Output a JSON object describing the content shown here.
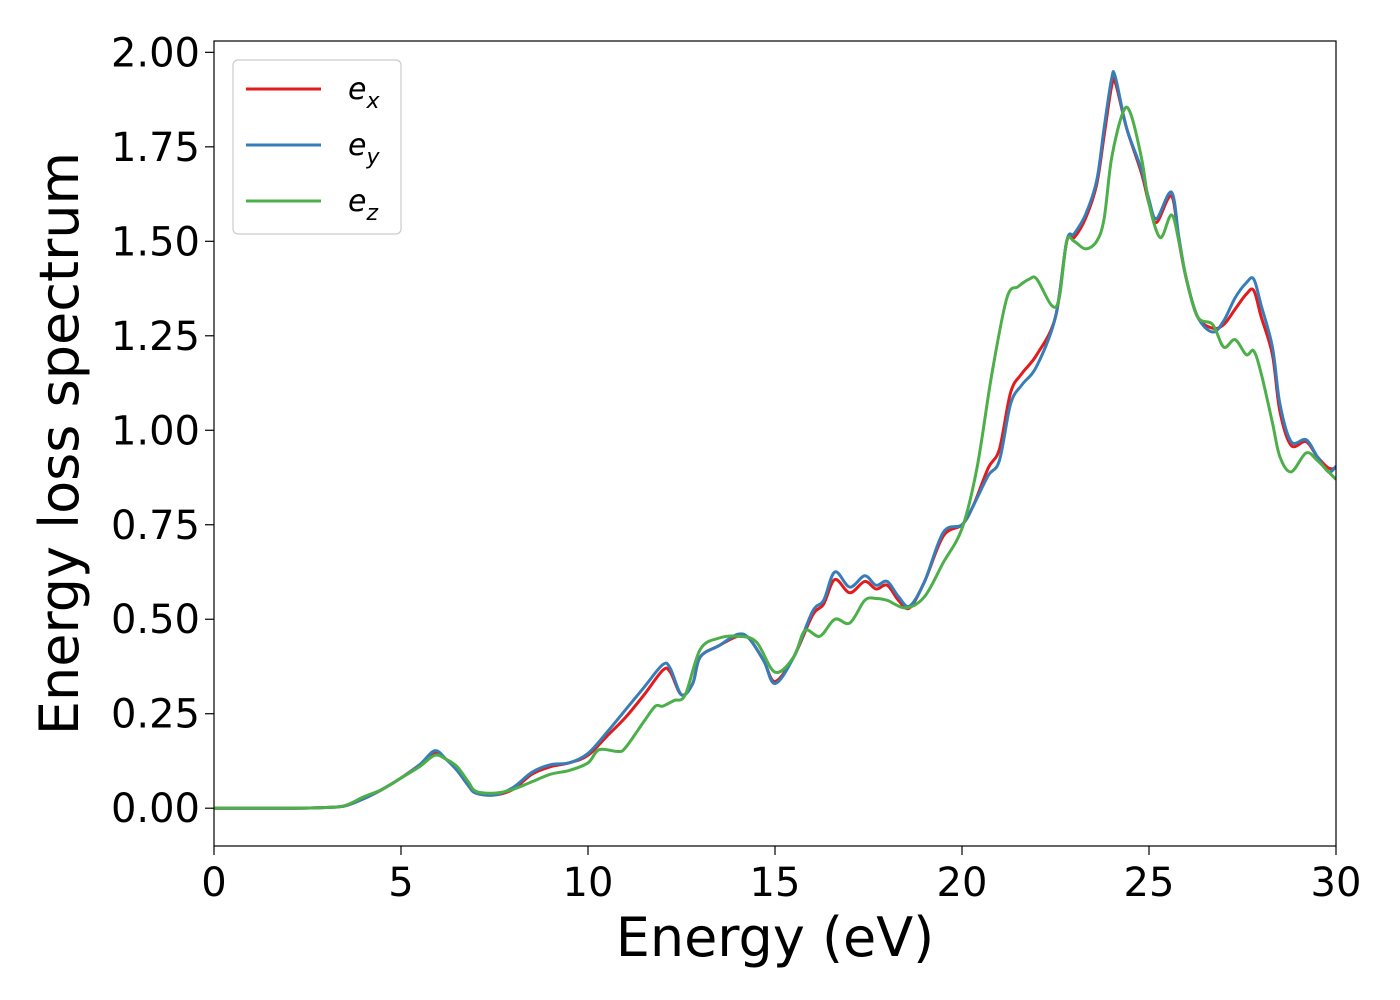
{
  "chart_data": {
    "type": "line",
    "title": "",
    "xlabel": "Energy (eV)",
    "ylabel": "Energy loss spectrum",
    "xlim": [
      0,
      30
    ],
    "ylim": [
      -0.1,
      2.03
    ],
    "xticks": [
      0,
      5,
      10,
      15,
      20,
      25,
      30
    ],
    "xtick_labels": [
      "0",
      "5",
      "10",
      "15",
      "20",
      "25",
      "30"
    ],
    "yticks": [
      0,
      0.25,
      0.5,
      0.75,
      1.0,
      1.25,
      1.5,
      1.75,
      2.0
    ],
    "ytick_labels": [
      "0.00",
      "0.25",
      "0.50",
      "0.75",
      "1.00",
      "1.25",
      "1.50",
      "1.75",
      "2.00"
    ],
    "grid": false,
    "legend_position": "top-left",
    "series": [
      {
        "name": "e",
        "subscript": "x",
        "color": "#e41a1c",
        "points": [
          [
            0,
            0
          ],
          [
            2,
            0
          ],
          [
            3,
            0.002
          ],
          [
            3.5,
            0.006
          ],
          [
            4,
            0.025
          ],
          [
            4.5,
            0.05
          ],
          [
            5,
            0.08
          ],
          [
            5.5,
            0.115
          ],
          [
            5.9,
            0.147
          ],
          [
            6.2,
            0.13
          ],
          [
            6.5,
            0.1
          ],
          [
            6.8,
            0.06
          ],
          [
            7,
            0.04
          ],
          [
            7.5,
            0.035
          ],
          [
            8,
            0.05
          ],
          [
            8.5,
            0.09
          ],
          [
            9,
            0.11
          ],
          [
            9.5,
            0.12
          ],
          [
            10,
            0.14
          ],
          [
            10.5,
            0.19
          ],
          [
            11,
            0.24
          ],
          [
            11.5,
            0.3
          ],
          [
            12,
            0.365
          ],
          [
            12.2,
            0.36
          ],
          [
            12.5,
            0.3
          ],
          [
            12.8,
            0.33
          ],
          [
            13,
            0.4
          ],
          [
            13.5,
            0.43
          ],
          [
            14,
            0.455
          ],
          [
            14.3,
            0.45
          ],
          [
            14.7,
            0.39
          ],
          [
            15,
            0.335
          ],
          [
            15.5,
            0.4
          ],
          [
            16,
            0.51
          ],
          [
            16.3,
            0.54
          ],
          [
            16.6,
            0.605
          ],
          [
            17,
            0.57
          ],
          [
            17.4,
            0.6
          ],
          [
            17.7,
            0.58
          ],
          [
            18,
            0.59
          ],
          [
            18.3,
            0.55
          ],
          [
            18.6,
            0.53
          ],
          [
            19,
            0.6
          ],
          [
            19.5,
            0.72
          ],
          [
            20,
            0.75
          ],
          [
            20.3,
            0.8
          ],
          [
            20.7,
            0.9
          ],
          [
            21,
            0.95
          ],
          [
            21.3,
            1.1
          ],
          [
            21.6,
            1.15
          ],
          [
            22,
            1.2
          ],
          [
            22.5,
            1.3
          ],
          [
            22.8,
            1.5
          ],
          [
            23,
            1.51
          ],
          [
            23.3,
            1.56
          ],
          [
            23.6,
            1.65
          ],
          [
            23.8,
            1.78
          ],
          [
            24,
            1.91
          ],
          [
            24.1,
            1.92
          ],
          [
            24.4,
            1.8
          ],
          [
            24.8,
            1.68
          ],
          [
            25,
            1.6
          ],
          [
            25.2,
            1.55
          ],
          [
            25.6,
            1.62
          ],
          [
            25.8,
            1.5
          ],
          [
            26,
            1.4
          ],
          [
            26.3,
            1.3
          ],
          [
            26.7,
            1.27
          ],
          [
            27,
            1.28
          ],
          [
            27.3,
            1.32
          ],
          [
            27.6,
            1.36
          ],
          [
            27.8,
            1.37
          ],
          [
            28,
            1.3
          ],
          [
            28.3,
            1.2
          ],
          [
            28.5,
            1.05
          ],
          [
            28.8,
            0.96
          ],
          [
            29.2,
            0.97
          ],
          [
            29.5,
            0.93
          ],
          [
            29.8,
            0.9
          ],
          [
            30,
            0.9
          ]
        ]
      },
      {
        "name": "e",
        "subscript": "y",
        "color": "#377eb8",
        "points": [
          [
            0,
            0
          ],
          [
            2,
            0
          ],
          [
            3,
            0.002
          ],
          [
            3.5,
            0.006
          ],
          [
            4,
            0.025
          ],
          [
            4.5,
            0.05
          ],
          [
            5,
            0.08
          ],
          [
            5.5,
            0.115
          ],
          [
            5.9,
            0.152
          ],
          [
            6.2,
            0.13
          ],
          [
            6.5,
            0.1
          ],
          [
            6.8,
            0.06
          ],
          [
            7,
            0.04
          ],
          [
            7.5,
            0.035
          ],
          [
            8,
            0.055
          ],
          [
            8.5,
            0.095
          ],
          [
            9,
            0.115
          ],
          [
            9.5,
            0.12
          ],
          [
            10,
            0.145
          ],
          [
            10.5,
            0.2
          ],
          [
            11,
            0.26
          ],
          [
            11.5,
            0.32
          ],
          [
            12,
            0.38
          ],
          [
            12.2,
            0.37
          ],
          [
            12.5,
            0.3
          ],
          [
            12.8,
            0.33
          ],
          [
            13,
            0.4
          ],
          [
            13.5,
            0.43
          ],
          [
            14,
            0.46
          ],
          [
            14.3,
            0.45
          ],
          [
            14.7,
            0.39
          ],
          [
            15,
            0.33
          ],
          [
            15.5,
            0.4
          ],
          [
            16,
            0.52
          ],
          [
            16.3,
            0.55
          ],
          [
            16.6,
            0.625
          ],
          [
            17,
            0.585
          ],
          [
            17.4,
            0.615
          ],
          [
            17.7,
            0.59
          ],
          [
            18,
            0.6
          ],
          [
            18.3,
            0.56
          ],
          [
            18.6,
            0.535
          ],
          [
            19,
            0.6
          ],
          [
            19.5,
            0.73
          ],
          [
            20,
            0.75
          ],
          [
            20.3,
            0.8
          ],
          [
            20.7,
            0.88
          ],
          [
            21,
            0.92
          ],
          [
            21.3,
            1.07
          ],
          [
            21.6,
            1.12
          ],
          [
            22,
            1.17
          ],
          [
            22.5,
            1.3
          ],
          [
            22.8,
            1.5
          ],
          [
            23,
            1.52
          ],
          [
            23.3,
            1.57
          ],
          [
            23.6,
            1.66
          ],
          [
            23.8,
            1.8
          ],
          [
            24,
            1.93
          ],
          [
            24.1,
            1.935
          ],
          [
            24.4,
            1.8
          ],
          [
            24.8,
            1.69
          ],
          [
            25,
            1.61
          ],
          [
            25.2,
            1.56
          ],
          [
            25.6,
            1.63
          ],
          [
            25.8,
            1.51
          ],
          [
            26,
            1.4
          ],
          [
            26.3,
            1.3
          ],
          [
            26.7,
            1.26
          ],
          [
            27,
            1.29
          ],
          [
            27.3,
            1.35
          ],
          [
            27.6,
            1.39
          ],
          [
            27.8,
            1.4
          ],
          [
            28,
            1.33
          ],
          [
            28.3,
            1.22
          ],
          [
            28.5,
            1.07
          ],
          [
            28.8,
            0.97
          ],
          [
            29.2,
            0.975
          ],
          [
            29.5,
            0.93
          ],
          [
            29.8,
            0.89
          ],
          [
            30,
            0.905
          ]
        ]
      },
      {
        "name": "e",
        "subscript": "z",
        "color": "#4daf4a",
        "points": [
          [
            0,
            0
          ],
          [
            2,
            0
          ],
          [
            3,
            0.002
          ],
          [
            3.5,
            0.007
          ],
          [
            4,
            0.03
          ],
          [
            4.5,
            0.05
          ],
          [
            5,
            0.08
          ],
          [
            5.5,
            0.11
          ],
          [
            5.9,
            0.14
          ],
          [
            6.2,
            0.13
          ],
          [
            6.5,
            0.11
          ],
          [
            6.8,
            0.07
          ],
          [
            7,
            0.045
          ],
          [
            7.5,
            0.04
          ],
          [
            8,
            0.05
          ],
          [
            8.5,
            0.07
          ],
          [
            9,
            0.09
          ],
          [
            9.5,
            0.1
          ],
          [
            10,
            0.12
          ],
          [
            10.3,
            0.155
          ],
          [
            10.8,
            0.15
          ],
          [
            11,
            0.16
          ],
          [
            11.5,
            0.23
          ],
          [
            11.8,
            0.27
          ],
          [
            12,
            0.27
          ],
          [
            12.3,
            0.285
          ],
          [
            12.6,
            0.3
          ],
          [
            13,
            0.42
          ],
          [
            13.5,
            0.45
          ],
          [
            14,
            0.455
          ],
          [
            14.5,
            0.44
          ],
          [
            15,
            0.36
          ],
          [
            15.5,
            0.4
          ],
          [
            15.8,
            0.47
          ],
          [
            16.2,
            0.455
          ],
          [
            16.6,
            0.5
          ],
          [
            17,
            0.49
          ],
          [
            17.4,
            0.55
          ],
          [
            17.7,
            0.555
          ],
          [
            18,
            0.55
          ],
          [
            18.5,
            0.53
          ],
          [
            19,
            0.56
          ],
          [
            19.5,
            0.65
          ],
          [
            20,
            0.74
          ],
          [
            20.4,
            0.9
          ],
          [
            20.8,
            1.15
          ],
          [
            21.2,
            1.35
          ],
          [
            21.5,
            1.38
          ],
          [
            21.8,
            1.4
          ],
          [
            22,
            1.4
          ],
          [
            22.4,
            1.33
          ],
          [
            22.6,
            1.35
          ],
          [
            22.8,
            1.5
          ],
          [
            23,
            1.5
          ],
          [
            23.3,
            1.48
          ],
          [
            23.6,
            1.5
          ],
          [
            23.8,
            1.56
          ],
          [
            24,
            1.72
          ],
          [
            24.3,
            1.84
          ],
          [
            24.5,
            1.84
          ],
          [
            24.8,
            1.72
          ],
          [
            25,
            1.6
          ],
          [
            25.3,
            1.51
          ],
          [
            25.6,
            1.57
          ],
          [
            25.8,
            1.5
          ],
          [
            26,
            1.4
          ],
          [
            26.3,
            1.3
          ],
          [
            26.7,
            1.28
          ],
          [
            27,
            1.22
          ],
          [
            27.3,
            1.24
          ],
          [
            27.6,
            1.2
          ],
          [
            27.8,
            1.21
          ],
          [
            28,
            1.15
          ],
          [
            28.3,
            1.02
          ],
          [
            28.5,
            0.93
          ],
          [
            28.8,
            0.89
          ],
          [
            29.2,
            0.94
          ],
          [
            29.5,
            0.92
          ],
          [
            29.8,
            0.89
          ],
          [
            30,
            0.87
          ]
        ]
      }
    ]
  }
}
